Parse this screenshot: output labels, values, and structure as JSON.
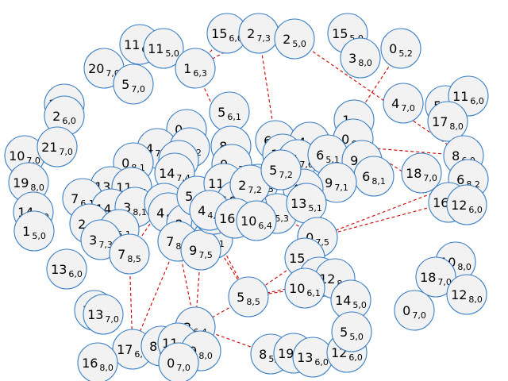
{
  "graph": {
    "colors": {
      "node_fill": "#f2f2f2",
      "node_stroke": "#3a7fc4",
      "edge": "#cc0000",
      "background": "#ffffff"
    },
    "edge_style": "dashed",
    "nodes": [
      {
        "id": "n1",
        "main": "11",
        "sub": "6,0"
      },
      {
        "id": "n2",
        "main": "11",
        "sub": "5,0"
      },
      {
        "id": "n3",
        "main": "15",
        "sub": "6,0"
      },
      {
        "id": "n4",
        "main": "2",
        "sub": "7,3"
      },
      {
        "id": "n5",
        "main": "2",
        "sub": "5,0"
      },
      {
        "id": "n6",
        "main": "15",
        "sub": "5,0"
      },
      {
        "id": "n7",
        "main": "0",
        "sub": "5,2"
      },
      {
        "id": "n8",
        "main": "3",
        "sub": "8,0"
      },
      {
        "id": "n9",
        "main": "20",
        "sub": "7,0"
      },
      {
        "id": "n10",
        "main": "5",
        "sub": "7,0"
      },
      {
        "id": "n11",
        "main": "1",
        "sub": "6,3"
      },
      {
        "id": "n12",
        "main": "16",
        "sub": "7,0"
      },
      {
        "id": "n13",
        "main": "2",
        "sub": "6,0"
      },
      {
        "id": "n14",
        "main": "5",
        "sub": "6,1"
      },
      {
        "id": "n15",
        "main": "4",
        "sub": "7,0"
      },
      {
        "id": "n16",
        "main": "5",
        "sub": "5,0"
      },
      {
        "id": "n17",
        "main": "11",
        "sub": "6,0"
      },
      {
        "id": "n18",
        "main": "17",
        "sub": "8,0"
      },
      {
        "id": "n19",
        "main": "1",
        "sub": "6,1"
      },
      {
        "id": "n20",
        "main": "0",
        "sub": "6,1"
      },
      {
        "id": "n21",
        "main": "10",
        "sub": "7,0"
      },
      {
        "id": "n22",
        "main": "21",
        "sub": "7,0"
      },
      {
        "id": "n23",
        "main": "4",
        "sub": "7,4"
      },
      {
        "id": "n24",
        "main": "7",
        "sub": "8,2"
      },
      {
        "id": "n25",
        "main": "8",
        "sub": "7,5"
      },
      {
        "id": "n26",
        "main": "6",
        "sub": "8,5"
      },
      {
        "id": "n27",
        "main": "4",
        "sub": "8,1"
      },
      {
        "id": "n28",
        "main": "0",
        "sub": "6,2"
      },
      {
        "id": "n29",
        "main": "8",
        "sub": "6,0"
      },
      {
        "id": "n30",
        "main": "0",
        "sub": "8,1"
      },
      {
        "id": "n31",
        "main": "7",
        "sub": "7,6"
      },
      {
        "id": "n32",
        "main": "14",
        "sub": "7,4"
      },
      {
        "id": "n33",
        "main": "1",
        "sub": "5,2"
      },
      {
        "id": "n34",
        "main": "15",
        "sub": "7,6"
      },
      {
        "id": "n35",
        "main": "6",
        "sub": "5,1"
      },
      {
        "id": "n36",
        "main": "9",
        "sub": "5,2"
      },
      {
        "id": "n37",
        "main": "18",
        "sub": "7,0"
      },
      {
        "id": "n38",
        "main": "6",
        "sub": "8,2"
      },
      {
        "id": "n39",
        "main": "19",
        "sub": "8,0"
      },
      {
        "id": "n40",
        "main": "13",
        "sub": "5,1"
      },
      {
        "id": "n41",
        "main": "11",
        "sub": "5,1"
      },
      {
        "id": "n42",
        "main": "6",
        "sub": "8,1"
      },
      {
        "id": "n43",
        "main": "9",
        "sub": "7,1"
      },
      {
        "id": "n44",
        "main": "7",
        "sub": "6,1"
      },
      {
        "id": "n45",
        "main": "14",
        "sub": "6,0"
      },
      {
        "id": "n46",
        "main": "14",
        "sub": "7,5"
      },
      {
        "id": "n47",
        "main": "3",
        "sub": "8,1"
      },
      {
        "id": "n48",
        "main": "2",
        "sub": "8,1"
      },
      {
        "id": "n49",
        "main": "12",
        "sub": "6,3"
      },
      {
        "id": "n50",
        "main": "4",
        "sub": "6,6"
      },
      {
        "id": "n51",
        "main": "16",
        "sub": "8,2"
      },
      {
        "id": "n52",
        "main": "12",
        "sub": "6,0"
      },
      {
        "id": "n53",
        "main": "1",
        "sub": "5,0"
      },
      {
        "id": "n54",
        "main": "2",
        "sub": "6,1"
      },
      {
        "id": "n55",
        "main": "4",
        "sub": "5,1"
      },
      {
        "id": "n56",
        "main": "3",
        "sub": "7,3"
      },
      {
        "id": "n57",
        "main": "7",
        "sub": "8,5"
      },
      {
        "id": "n58",
        "main": "4",
        "sub": "8,4"
      },
      {
        "id": "n59",
        "main": "8",
        "sub": "8,3"
      },
      {
        "id": "n60",
        "main": "6",
        "sub": "8,5"
      },
      {
        "id": "n61",
        "main": "2",
        "sub": "5,3"
      },
      {
        "id": "n62",
        "main": "13",
        "sub": "5,1"
      },
      {
        "id": "n63",
        "main": "0",
        "sub": "7,5"
      },
      {
        "id": "n64",
        "main": "7",
        "sub": "8,2"
      },
      {
        "id": "n65",
        "main": "3",
        "sub": "6,1"
      },
      {
        "id": "n66",
        "main": "9",
        "sub": "7,5"
      },
      {
        "id": "n67",
        "main": "15",
        "sub": "5,3"
      },
      {
        "id": "n68",
        "main": "10",
        "sub": "8,0"
      },
      {
        "id": "n69",
        "main": "18",
        "sub": "7,0"
      },
      {
        "id": "n70",
        "main": "12",
        "sub": "8,0"
      },
      {
        "id": "n71",
        "main": "13",
        "sub": "6,0"
      },
      {
        "id": "n72",
        "main": "11",
        "sub": "6,1"
      },
      {
        "id": "n73",
        "main": "12",
        "sub": "8,1"
      },
      {
        "id": "n74",
        "main": "10",
        "sub": "6,1"
      },
      {
        "id": "n75",
        "main": "14",
        "sub": "5,0"
      },
      {
        "id": "n76",
        "main": "0",
        "sub": "7,0"
      },
      {
        "id": "n77",
        "main": "5",
        "sub": "8,5"
      },
      {
        "id": "n78",
        "main": "7",
        "sub": "8,0"
      },
      {
        "id": "n79",
        "main": "13",
        "sub": "7,0"
      },
      {
        "id": "n80",
        "main": "2",
        "sub": "6,4"
      },
      {
        "id": "n81",
        "main": "17",
        "sub": "6,0"
      },
      {
        "id": "n82",
        "main": "8",
        "sub": "5,4"
      },
      {
        "id": "n83",
        "main": "11",
        "sub": "5,0"
      },
      {
        "id": "n84",
        "main": "9",
        "sub": "8,0"
      },
      {
        "id": "n85",
        "main": "8",
        "sub": "5,1"
      },
      {
        "id": "n86",
        "main": "19",
        "sub": "7,3"
      },
      {
        "id": "n87",
        "main": "13",
        "sub": "6,0"
      },
      {
        "id": "n88",
        "main": "12",
        "sub": "6,0"
      },
      {
        "id": "n89",
        "main": "5",
        "sub": "5,0"
      },
      {
        "id": "n90",
        "main": "16",
        "sub": "8,0"
      },
      {
        "id": "n91",
        "main": "0",
        "sub": "7,0"
      },
      {
        "id": "n92",
        "main": "9",
        "sub": "6,3"
      },
      {
        "id": "n93",
        "main": "5",
        "sub": "8,6"
      },
      {
        "id": "n94",
        "main": "7",
        "sub": "6,2"
      },
      {
        "id": "n95",
        "main": "3",
        "sub": "6,2"
      },
      {
        "id": "n96",
        "main": "11",
        "sub": "4,7"
      },
      {
        "id": "n97",
        "main": "10",
        "sub": "6,6"
      },
      {
        "id": "n98",
        "main": "2",
        "sub": "7,2"
      },
      {
        "id": "n99",
        "main": "4",
        "sub": "4,1"
      },
      {
        "id": "n100",
        "main": "16",
        "sub": "6,5"
      },
      {
        "id": "n101",
        "main": "10",
        "sub": "6,4"
      },
      {
        "id": "n102",
        "main": "5",
        "sub": "7,2"
      }
    ],
    "edges": [
      [
        "n3",
        "n11"
      ],
      [
        "n4",
        "n11"
      ],
      [
        "n4",
        "n26"
      ],
      [
        "n5",
        "n29"
      ],
      [
        "n7",
        "n19"
      ],
      [
        "n11",
        "n25"
      ],
      [
        "n14",
        "n25"
      ],
      [
        "n19",
        "n28"
      ],
      [
        "n29",
        "n26"
      ],
      [
        "n26",
        "n36"
      ],
      [
        "n28",
        "n51"
      ],
      [
        "n38",
        "n63"
      ],
      [
        "n51",
        "n63"
      ],
      [
        "n63",
        "n67"
      ],
      [
        "n67",
        "n77"
      ],
      [
        "n67",
        "n74"
      ],
      [
        "n74",
        "n77"
      ],
      [
        "n77",
        "n80"
      ],
      [
        "n80",
        "n85"
      ],
      [
        "n80",
        "n64"
      ],
      [
        "n64",
        "n81"
      ],
      [
        "n57",
        "n81"
      ],
      [
        "n57",
        "n48"
      ],
      [
        "n54",
        "n47"
      ],
      [
        "n60",
        "n77"
      ],
      [
        "n66",
        "n80"
      ],
      [
        "n65",
        "n77"
      ],
      [
        "n73",
        "n77"
      ],
      [
        "n72",
        "n75"
      ],
      [
        "n61",
        "n62"
      ],
      [
        "n61",
        "n63"
      ]
    ]
  }
}
